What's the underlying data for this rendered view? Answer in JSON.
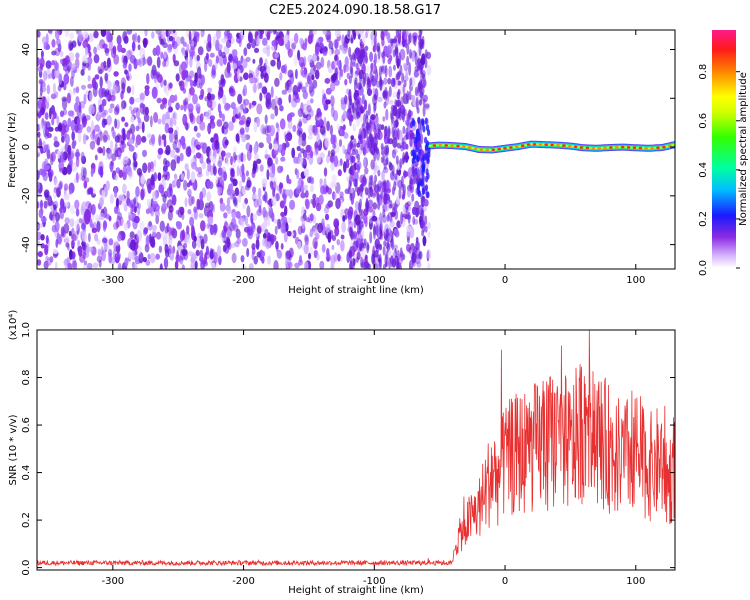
{
  "title": "C2E5.2024.090.18.58.G17",
  "chart_data": [
    {
      "type": "heatmap",
      "xlabel": "Height of straight line (km)",
      "ylabel": "Frequency (Hz)",
      "xlim": [
        -358,
        130
      ],
      "ylim": [
        -50,
        48
      ],
      "xticks": [
        -300,
        -200,
        -100,
        0,
        100
      ],
      "yticks": [
        -40,
        -20,
        0,
        20,
        40
      ],
      "noise_region_x": [
        -358,
        -58
      ],
      "signal_trace": {
        "x": [
          -58,
          -50,
          -40,
          -30,
          -20,
          -10,
          0,
          10,
          20,
          30,
          40,
          50,
          60,
          70,
          80,
          90,
          100,
          110,
          120,
          130
        ],
        "frequency": [
          0.5,
          0.8,
          0.6,
          0.2,
          -1.0,
          -1.2,
          -0.5,
          0.2,
          1.2,
          1.0,
          0.8,
          0.4,
          -0.3,
          -0.5,
          -0.2,
          0.0,
          -0.3,
          -0.5,
          -0.2,
          1.0
        ]
      },
      "colorbar": {
        "label": "Normalized spectral amplitude",
        "range": [
          0.0,
          0.97
        ],
        "ticks": [
          0.0,
          0.2,
          0.4,
          0.6,
          0.8
        ]
      },
      "grid": false
    },
    {
      "type": "line",
      "xlabel": "Height of straight line (km)",
      "ylabel": "SNR (10 * v/v)",
      "y_multiplier": "(x10⁴)",
      "xlim": [
        -358,
        130
      ],
      "ylim": [
        -0.01,
        1.0
      ],
      "xticks": [
        -300,
        -200,
        -100,
        0,
        100
      ],
      "yticks": [
        0.0,
        0.2,
        0.4,
        0.6,
        0.8,
        1.0
      ],
      "series": [
        {
          "color": "#e83030",
          "x": [
            -358,
            -300,
            -200,
            -100,
            -40,
            -38,
            -30,
            -20,
            -15,
            -10,
            -5,
            0,
            10,
            20,
            30,
            40,
            50,
            60,
            65,
            70,
            80,
            90,
            100,
            110,
            120,
            125,
            130
          ],
          "y": [
            0.02,
            0.02,
            0.02,
            0.02,
            0.02,
            0.1,
            0.18,
            0.25,
            0.32,
            0.4,
            0.38,
            0.45,
            0.48,
            0.5,
            0.52,
            0.55,
            0.5,
            0.6,
            0.72,
            0.55,
            0.5,
            0.45,
            0.5,
            0.42,
            0.45,
            0.35,
            0.45
          ]
        }
      ],
      "grid": false
    }
  ]
}
